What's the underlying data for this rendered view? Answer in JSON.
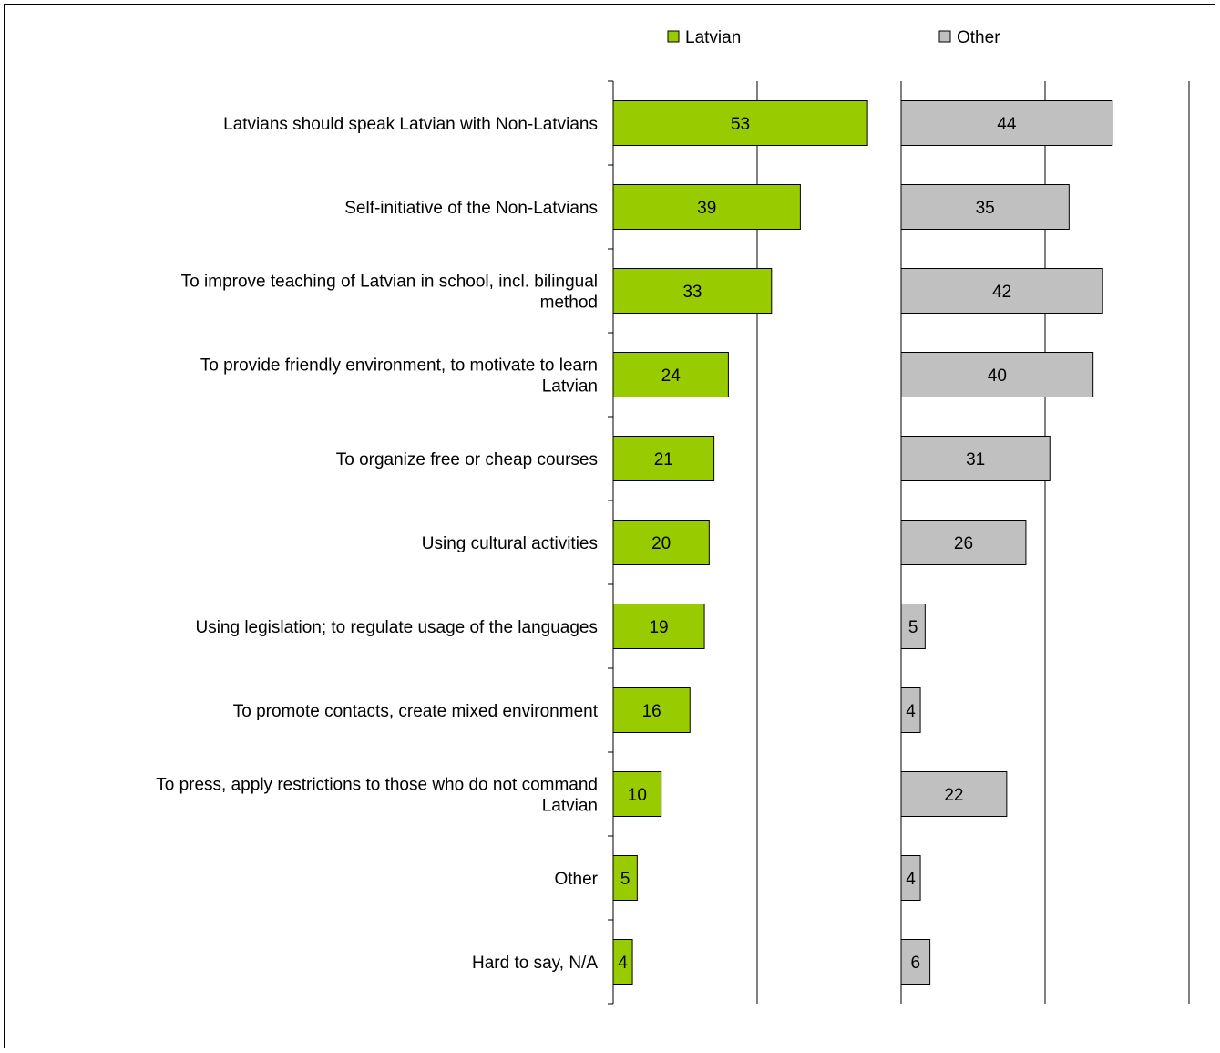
{
  "chart_data": {
    "type": "bar",
    "orientation": "horizontal",
    "layout": "side-by-side panels",
    "categories": [
      [
        "Latvians should speak Latvian with Non-Latvians"
      ],
      [
        "Self-initiative of the Non-Latvians"
      ],
      [
        "To improve teaching of Latvian in school, incl. bilingual",
        "method"
      ],
      [
        "To provide friendly environment, to motivate to learn",
        "Latvian"
      ],
      [
        "To organize free or cheap courses"
      ],
      [
        "Using cultural activities"
      ],
      [
        "Using legislation; to regulate usage of the languages"
      ],
      [
        "To promote contacts, create mixed environment"
      ],
      [
        "To press, apply restrictions to those who do not command",
        "Latvian"
      ],
      [
        "Other"
      ],
      [
        "Hard to say, N/A"
      ]
    ],
    "series": [
      {
        "name": "Latvian",
        "color": "#99cc00",
        "values": [
          53,
          39,
          33,
          24,
          21,
          20,
          19,
          16,
          10,
          5,
          4
        ]
      },
      {
        "name": "Other",
        "color": "#c0c0c0",
        "values": [
          44,
          35,
          42,
          40,
          31,
          26,
          5,
          4,
          22,
          4,
          6
        ]
      }
    ],
    "panel_range": [
      0,
      60
    ],
    "gridlines": true,
    "legend_position": "top"
  }
}
